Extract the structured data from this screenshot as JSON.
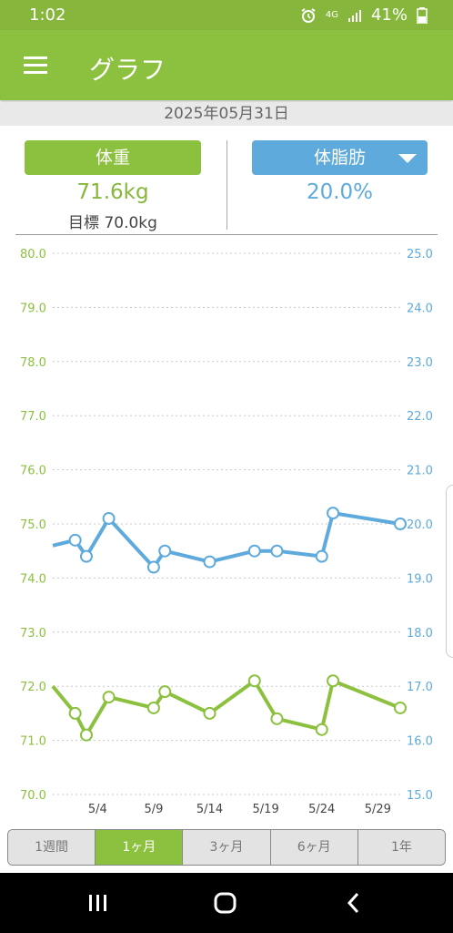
{
  "status": {
    "time": "1:02",
    "network": "4G",
    "battery": "41%",
    "icons": [
      "alarm-icon",
      "signal-icon",
      "battery-icon"
    ]
  },
  "appbar": {
    "title": "グラフ",
    "menu_icon": "hamburger-menu-icon"
  },
  "date": "2025年05月31日",
  "weight": {
    "label": "体重",
    "value": "71.6kg",
    "goal": "目標 70.0kg",
    "color": "#8cc13f"
  },
  "fat": {
    "label": "体脂肪",
    "value": "20.0%",
    "color": "#5eaadc"
  },
  "ranges": [
    {
      "label": "1週間",
      "active": false
    },
    {
      "label": "1ヶ月",
      "active": true
    },
    {
      "label": "3ヶ月",
      "active": false
    },
    {
      "label": "6ヶ月",
      "active": false
    },
    {
      "label": "1年",
      "active": false
    }
  ],
  "nav": {
    "recent": "recent-apps-icon",
    "home": "home-icon",
    "back": "back-icon"
  },
  "chart_data": {
    "type": "line",
    "x_tick_labels": [
      "5/4",
      "5/9",
      "5/14",
      "5/19",
      "5/24",
      "5/29"
    ],
    "x_ticks": [
      4,
      9,
      14,
      19,
      24,
      29
    ],
    "xlim": [
      0,
      31
    ],
    "y_left": {
      "lim": [
        70.0,
        80.0
      ],
      "ticks": [
        "80.0",
        "79.0",
        "78.0",
        "77.0",
        "76.0",
        "75.0",
        "74.0",
        "73.0",
        "72.0",
        "71.0",
        "70.0"
      ]
    },
    "y_right": {
      "lim": [
        15.0,
        25.0
      ],
      "ticks": [
        "25.0",
        "24.0",
        "23.0",
        "22.0",
        "21.0",
        "20.0",
        "19.0",
        "18.0",
        "17.0",
        "16.0",
        "15.0"
      ]
    },
    "grid": true,
    "series": [
      {
        "axis": "right",
        "color": "#5eaadc",
        "points": [
          {
            "x": 0,
            "y": 19.6,
            "marker": false
          },
          {
            "x": 2,
            "y": 19.7,
            "marker": true
          },
          {
            "x": 3,
            "y": 19.4,
            "marker": true
          },
          {
            "x": 5,
            "y": 20.1,
            "marker": true
          },
          {
            "x": 9,
            "y": 19.2,
            "marker": true
          },
          {
            "x": 10,
            "y": 19.5,
            "marker": true
          },
          {
            "x": 14,
            "y": 19.3,
            "marker": true
          },
          {
            "x": 18,
            "y": 19.5,
            "marker": true
          },
          {
            "x": 20,
            "y": 19.5,
            "marker": true
          },
          {
            "x": 24,
            "y": 19.4,
            "marker": true
          },
          {
            "x": 25,
            "y": 20.2,
            "marker": true
          },
          {
            "x": 31,
            "y": 20.0,
            "marker": true
          }
        ]
      },
      {
        "axis": "left",
        "color": "#8cc13f",
        "points": [
          {
            "x": 0,
            "y": 72.0,
            "marker": false
          },
          {
            "x": 2,
            "y": 71.5,
            "marker": true
          },
          {
            "x": 3,
            "y": 71.1,
            "marker": true
          },
          {
            "x": 5,
            "y": 71.8,
            "marker": true
          },
          {
            "x": 9,
            "y": 71.6,
            "marker": true
          },
          {
            "x": 10,
            "y": 71.9,
            "marker": true
          },
          {
            "x": 14,
            "y": 71.5,
            "marker": true
          },
          {
            "x": 18,
            "y": 72.1,
            "marker": true
          },
          {
            "x": 20,
            "y": 71.4,
            "marker": true
          },
          {
            "x": 24,
            "y": 71.2,
            "marker": true
          },
          {
            "x": 25,
            "y": 72.1,
            "marker": true
          },
          {
            "x": 31,
            "y": 71.6,
            "marker": true
          }
        ]
      }
    ]
  }
}
